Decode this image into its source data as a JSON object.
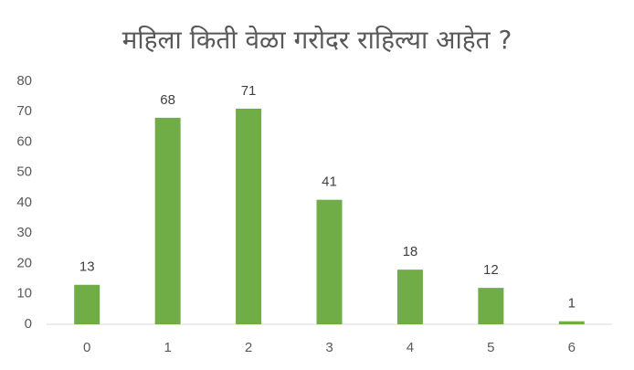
{
  "chart_data": {
    "type": "bar",
    "title": "महिला किती वेळा गरोदर राहिल्या आहेत ?",
    "categories": [
      "0",
      "1",
      "2",
      "3",
      "4",
      "5",
      "6"
    ],
    "values": [
      13,
      68,
      71,
      41,
      18,
      12,
      1
    ],
    "color": "#70ad47",
    "ylim": [
      0,
      80
    ],
    "yticks": [
      0,
      10,
      20,
      30,
      40,
      50,
      60,
      70,
      80
    ],
    "grid": false,
    "data_labels": true
  }
}
